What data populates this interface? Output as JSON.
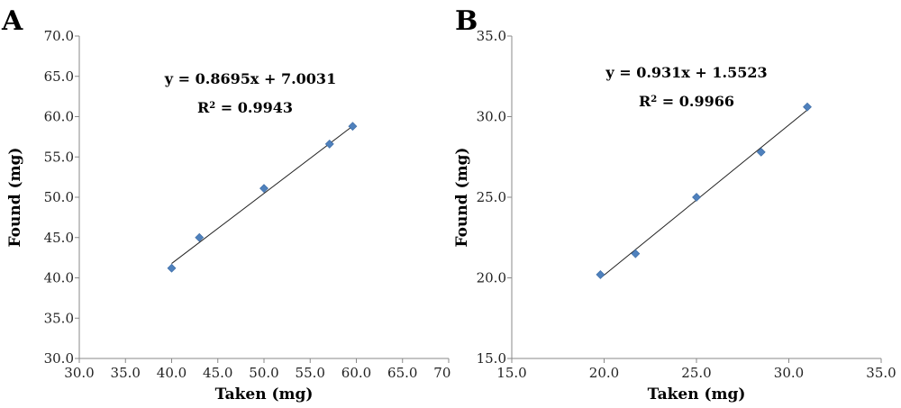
{
  "chart_data": [
    {
      "type": "scatter",
      "panel_label": "A",
      "xlabel": "Taken (mg)",
      "ylabel": "Found (mg)",
      "xlim": [
        30,
        70
      ],
      "ylim": [
        30,
        70
      ],
      "xticks": [
        "30.0",
        "35.0",
        "40.0",
        "45.0",
        "50.0",
        "55.0",
        "60.0",
        "65.0",
        "70.0"
      ],
      "yticks": [
        "30.0",
        "35.0",
        "40.0",
        "45.0",
        "50.0",
        "55.0",
        "60.0",
        "65.0",
        "70.0"
      ],
      "grid": false,
      "points": [
        {
          "x": 40.0,
          "y": 41.2
        },
        {
          "x": 43.0,
          "y": 45.0
        },
        {
          "x": 50.0,
          "y": 51.1
        },
        {
          "x": 57.1,
          "y": 56.6
        },
        {
          "x": 59.6,
          "y": 58.8
        }
      ],
      "trendline": {
        "slope": 0.8695,
        "intercept": 7.0031,
        "x_range": [
          40.0,
          59.6
        ]
      },
      "equation": "y = 0.8695x + 7.0031",
      "r2_prefix": "R",
      "r2_value": " = 0.9943"
    },
    {
      "type": "scatter",
      "panel_label": "B",
      "xlabel": "Taken (mg)",
      "ylabel": "Found (mg)",
      "xlim": [
        15,
        35
      ],
      "ylim": [
        15,
        35
      ],
      "xticks": [
        "15.0",
        "20.0",
        "25.0",
        "30.0",
        "35.0"
      ],
      "yticks": [
        "15.0",
        "20.0",
        "25.0",
        "30.0",
        "35.0"
      ],
      "grid": false,
      "points": [
        {
          "x": 19.8,
          "y": 20.2
        },
        {
          "x": 21.7,
          "y": 21.5
        },
        {
          "x": 25.0,
          "y": 25.0
        },
        {
          "x": 28.5,
          "y": 27.8
        },
        {
          "x": 31.0,
          "y": 30.6
        }
      ],
      "trendline": {
        "slope": 0.931,
        "intercept": 1.5523,
        "x_range": [
          19.8,
          31.0
        ]
      },
      "equation": "y = 0.931x + 1.5523",
      "r2_prefix": "R",
      "r2_value": " = 0.9966"
    }
  ]
}
